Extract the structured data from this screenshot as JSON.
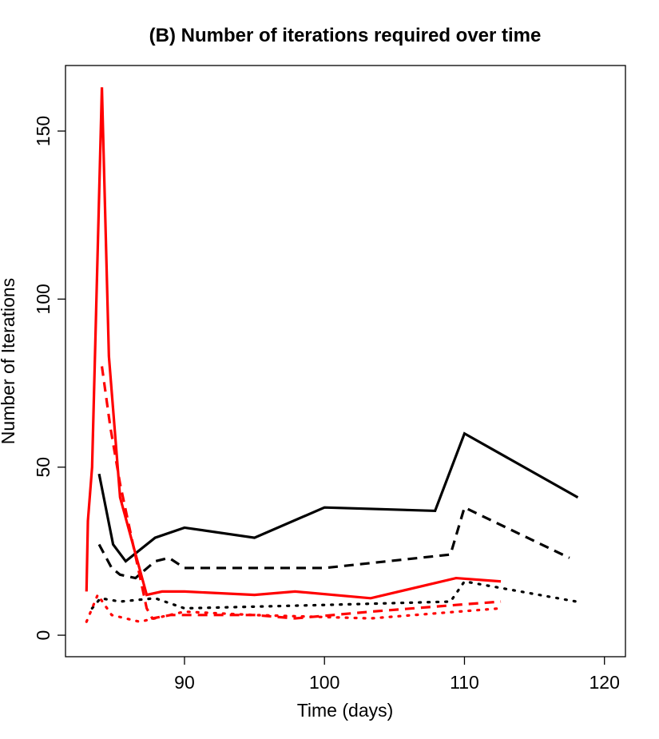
{
  "chart_data": {
    "type": "line",
    "title": "(B) Number of iterations required over time",
    "x_label": "Time (days)",
    "y_label": "Number of Iterations",
    "xlim": [
      81.5,
      121.5
    ],
    "ylim": [
      -6.4,
      169.5
    ],
    "xticks": [
      90,
      100,
      110,
      120
    ],
    "yticks": [
      0,
      50,
      100,
      150
    ],
    "grid": false,
    "series": [
      {
        "color": "#000000",
        "dash": "solid",
        "x": [
          83.9,
          84.9,
          85.8,
          87.9,
          90,
          95,
          100,
          107.9,
          110,
          118.1
        ],
        "values": [
          48,
          27,
          22,
          29,
          32,
          29,
          38,
          37,
          60,
          41
        ]
      },
      {
        "color": "#000000",
        "dash": "dashed",
        "x": [
          83.9,
          84.8,
          85.4,
          86.5,
          87.9,
          88.9,
          90,
          100,
          109,
          110,
          117.5
        ],
        "values": [
          27,
          20,
          18,
          17,
          22,
          23,
          20,
          20,
          24,
          38,
          23
        ]
      },
      {
        "color": "#000000",
        "dash": "dotted",
        "x": [
          83.4,
          84,
          85.4,
          87.9,
          90,
          100,
          109,
          110,
          118
        ],
        "values": [
          8,
          11,
          10,
          11,
          8,
          9,
          10,
          16,
          10
        ]
      },
      {
        "color": "#ff0000",
        "dash": "solid",
        "x": [
          83,
          83.1,
          83.4,
          84.1,
          84.6,
          85.4,
          87.3,
          88.4,
          90,
          95,
          97.9,
          103.3,
          109.4,
          112.6
        ],
        "values": [
          13,
          34,
          50,
          163,
          83,
          41,
          12,
          13,
          13,
          12,
          13,
          11,
          17,
          16
        ]
      },
      {
        "color": "#ff0000",
        "dash": "dashed",
        "x": [
          84.1,
          84.7,
          85.4,
          87.3,
          87.7,
          89,
          95,
          97.9,
          103.3,
          109.4,
          112.6
        ],
        "values": [
          80,
          62,
          45,
          8,
          5,
          6,
          6,
          5,
          7,
          9,
          10
        ]
      },
      {
        "color": "#ff0000",
        "dash": "dotted",
        "x": [
          83,
          83.8,
          84.8,
          86.8,
          90,
          95,
          103.3,
          112.6
        ],
        "values": [
          4,
          12,
          6,
          4,
          7,
          6,
          5,
          8
        ]
      }
    ]
  }
}
